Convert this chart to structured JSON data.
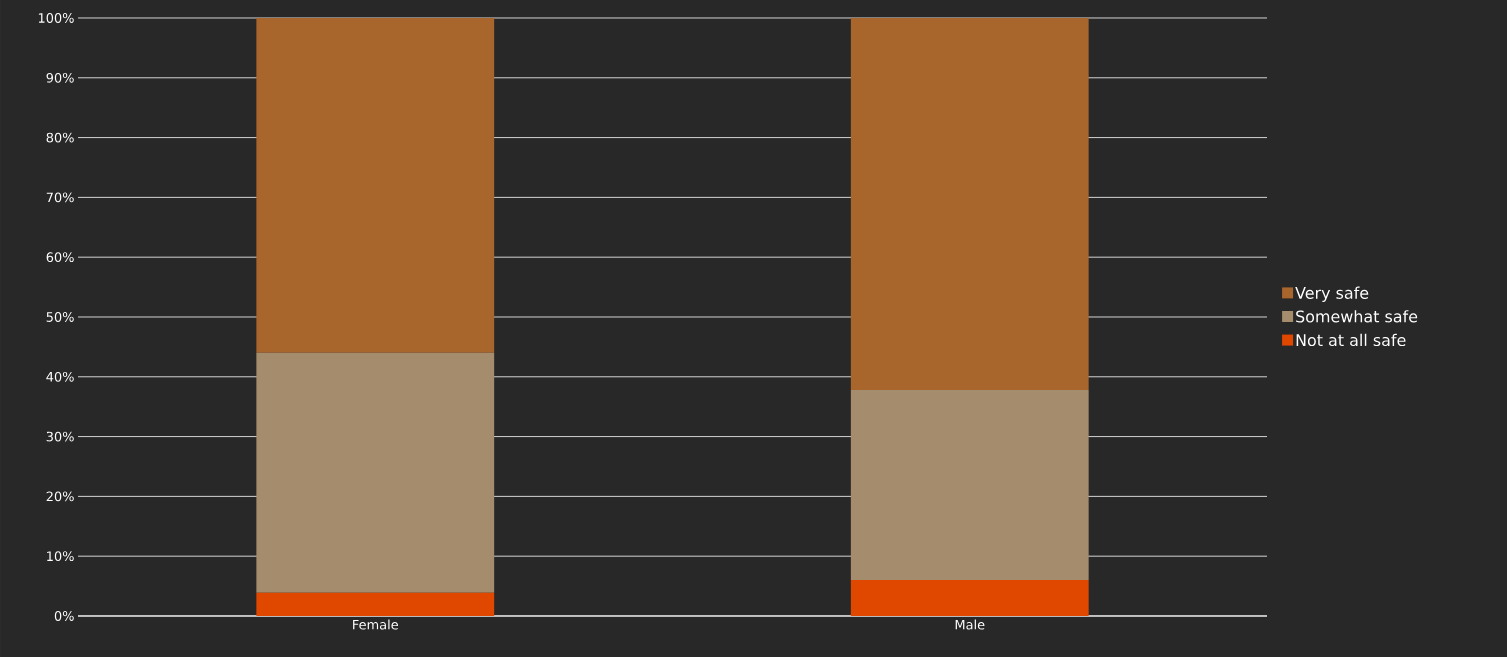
{
  "chart_data": {
    "type": "bar",
    "stacked": true,
    "categories": [
      "Female",
      "Male"
    ],
    "series": [
      {
        "name": "Not at all safe",
        "color": "#e04800",
        "values": [
          3.9,
          6.0
        ]
      },
      {
        "name": "Somewhat safe",
        "color": "#a48c6c",
        "values": [
          40.1,
          31.8
        ]
      },
      {
        "name": "Very safe",
        "color": "#a8652c",
        "values": [
          56.0,
          62.2
        ]
      }
    ],
    "ylim": [
      0,
      100
    ],
    "yticks": [
      {
        "value": 0,
        "label": "0%"
      },
      {
        "value": 10,
        "label": "10%"
      },
      {
        "value": 20,
        "label": "20%"
      },
      {
        "value": 30,
        "label": "30%"
      },
      {
        "value": 40,
        "label": "40%"
      },
      {
        "value": 50,
        "label": "50%"
      },
      {
        "value": 60,
        "label": "60%"
      },
      {
        "value": 70,
        "label": "70%"
      },
      {
        "value": 80,
        "label": "80%"
      },
      {
        "value": 90,
        "label": "90%"
      },
      {
        "value": 100,
        "label": "100%"
      }
    ],
    "grid": "y",
    "legend": "right"
  }
}
